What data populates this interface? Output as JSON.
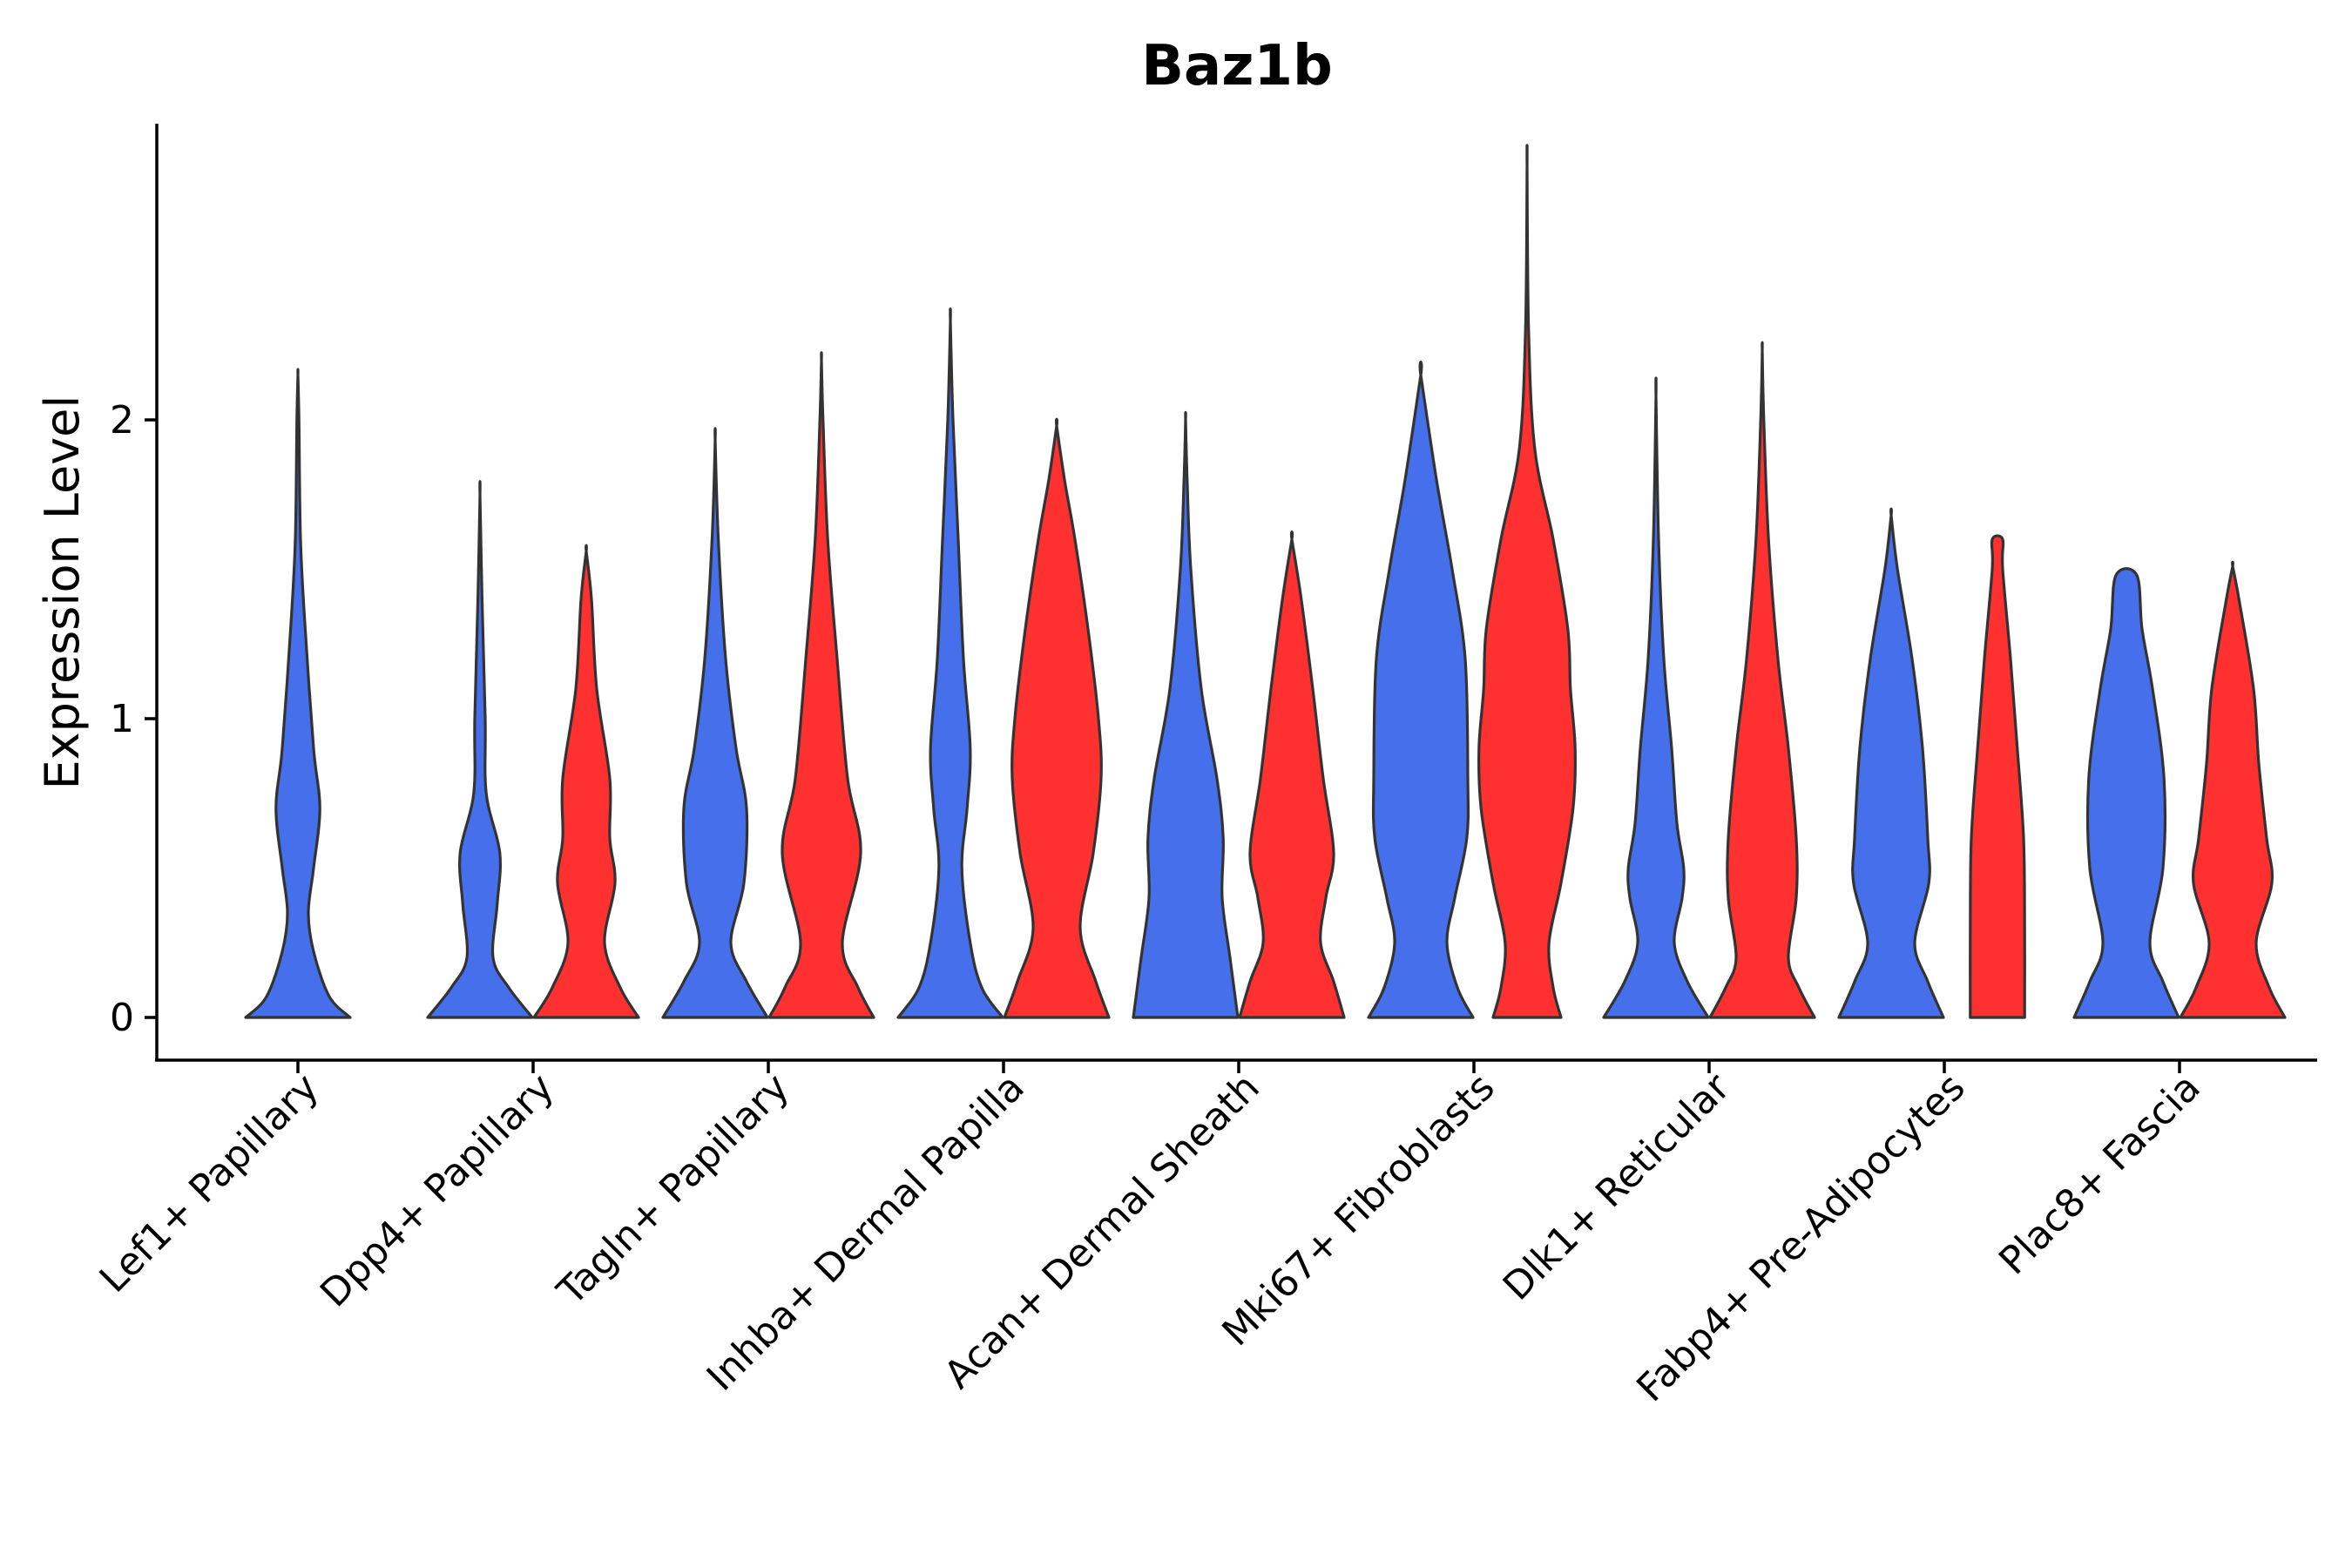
{
  "chart_data": {
    "type": "violin",
    "title": "Baz1b",
    "xlabel": "",
    "ylabel": "Expression Level",
    "ylim": [
      -0.14,
      3.0
    ],
    "yticks": [
      0,
      1,
      2
    ],
    "grid": false,
    "legend": "none",
    "colors": {
      "group1": "#4670eb",
      "group2": "#ff3030",
      "outline": "#333333"
    },
    "categories": [
      "Lef1+ Papillary",
      "Dpp4+ Papillary",
      "Tagln+ Papillary",
      "Inhba+ Dermal Papilla",
      "Acan+ Dermal Sheath",
      "Mki67+ Fibroblasts",
      "Dlk1+ Reticular",
      "Fabp4+ Pre-Adipocytes",
      "Plac8+ Fascia"
    ],
    "series": [
      {
        "name": "group1",
        "color": "#4670eb",
        "violins": [
          {
            "category": "Lef1+ Papillary",
            "max": 2.15,
            "profile": [
              [
                0,
                1.0
              ],
              [
                0.07,
                0.6
              ],
              [
                0.22,
                0.3
              ],
              [
                0.35,
                0.2
              ],
              [
                0.5,
                0.3
              ],
              [
                0.7,
                0.42
              ],
              [
                0.9,
                0.3
              ],
              [
                1.3,
                0.14
              ],
              [
                1.6,
                0.05
              ],
              [
                2.0,
                0.02
              ],
              [
                2.15,
                0
              ]
            ]
          },
          {
            "category": "Dpp4+ Papillary",
            "max": 1.75,
            "profile": [
              [
                0,
                1.0
              ],
              [
                0.1,
                0.55
              ],
              [
                0.2,
                0.25
              ],
              [
                0.38,
                0.33
              ],
              [
                0.55,
                0.38
              ],
              [
                0.75,
                0.12
              ],
              [
                1.0,
                0.1
              ],
              [
                1.4,
                0.04
              ],
              [
                1.75,
                0
              ]
            ]
          },
          {
            "category": "Tagln+ Papillary",
            "max": 1.93,
            "profile": [
              [
                0,
                1.0
              ],
              [
                0.12,
                0.6
              ],
              [
                0.25,
                0.3
              ],
              [
                0.45,
                0.55
              ],
              [
                0.7,
                0.6
              ],
              [
                0.9,
                0.4
              ],
              [
                1.2,
                0.2
              ],
              [
                1.6,
                0.06
              ],
              [
                1.93,
                0
              ]
            ]
          },
          {
            "category": "Inhba+ Dermal Papilla",
            "max": 2.33,
            "profile": [
              [
                0,
                1.0
              ],
              [
                0.1,
                0.6
              ],
              [
                0.25,
                0.38
              ],
              [
                0.5,
                0.22
              ],
              [
                0.7,
                0.32
              ],
              [
                0.9,
                0.38
              ],
              [
                1.2,
                0.25
              ],
              [
                1.6,
                0.15
              ],
              [
                2.0,
                0.05
              ],
              [
                2.33,
                0
              ]
            ]
          },
          {
            "category": "Acan+ Dermal Sheath",
            "max": 2.0,
            "profile": [
              [
                0,
                1.0
              ],
              [
                0.2,
                0.85
              ],
              [
                0.4,
                0.7
              ],
              [
                0.6,
                0.72
              ],
              [
                0.8,
                0.6
              ],
              [
                1.1,
                0.3
              ],
              [
                1.5,
                0.1
              ],
              [
                1.8,
                0.03
              ],
              [
                2.0,
                0
              ]
            ]
          },
          {
            "category": "Mki67+ Fibroblasts",
            "max": 2.15,
            "profile": [
              [
                0,
                1.0
              ],
              [
                0.1,
                0.7
              ],
              [
                0.25,
                0.5
              ],
              [
                0.4,
                0.65
              ],
              [
                0.6,
                0.88
              ],
              [
                0.8,
                0.9
              ],
              [
                1.2,
                0.85
              ],
              [
                1.5,
                0.6
              ],
              [
                1.8,
                0.3
              ],
              [
                2.15,
                0
              ]
            ]
          },
          {
            "category": "Dlk1+ Reticular",
            "max": 2.08,
            "profile": [
              [
                0,
                1.0
              ],
              [
                0.12,
                0.6
              ],
              [
                0.25,
                0.35
              ],
              [
                0.4,
                0.5
              ],
              [
                0.5,
                0.53
              ],
              [
                0.65,
                0.4
              ],
              [
                0.9,
                0.3
              ],
              [
                1.2,
                0.15
              ],
              [
                1.6,
                0.05
              ],
              [
                2.08,
                0
              ]
            ]
          },
          {
            "category": "Fabp4+ Pre-Adipocytes",
            "max": 1.68,
            "profile": [
              [
                0,
                1.0
              ],
              [
                0.12,
                0.7
              ],
              [
                0.25,
                0.45
              ],
              [
                0.45,
                0.72
              ],
              [
                0.6,
                0.7
              ],
              [
                0.9,
                0.6
              ],
              [
                1.2,
                0.4
              ],
              [
                1.5,
                0.12
              ],
              [
                1.68,
                0
              ]
            ]
          },
          {
            "category": "Plac8+ Fascia",
            "max": 1.48,
            "profile": [
              [
                0,
                1.0
              ],
              [
                0.12,
                0.7
              ],
              [
                0.25,
                0.45
              ],
              [
                0.5,
                0.7
              ],
              [
                0.8,
                0.72
              ],
              [
                1.1,
                0.5
              ],
              [
                1.3,
                0.3
              ],
              [
                1.48,
                0.2
              ]
            ]
          }
        ]
      },
      {
        "name": "group2",
        "color": "#ff3030",
        "violins": [
          {
            "category": "Dpp4+ Papillary",
            "max": 1.56,
            "profile": [
              [
                0,
                1.0
              ],
              [
                0.1,
                0.65
              ],
              [
                0.25,
                0.35
              ],
              [
                0.45,
                0.55
              ],
              [
                0.6,
                0.45
              ],
              [
                0.8,
                0.45
              ],
              [
                1.1,
                0.2
              ],
              [
                1.4,
                0.1
              ],
              [
                1.56,
                0
              ]
            ]
          },
          {
            "category": "Tagln+ Papillary",
            "max": 2.2,
            "profile": [
              [
                0,
                1.0
              ],
              [
                0.1,
                0.7
              ],
              [
                0.25,
                0.4
              ],
              [
                0.55,
                0.75
              ],
              [
                0.8,
                0.5
              ],
              [
                1.2,
                0.3
              ],
              [
                1.6,
                0.12
              ],
              [
                2.0,
                0.03
              ],
              [
                2.2,
                0
              ]
            ]
          },
          {
            "category": "Inhba+ Dermal Papilla",
            "max": 1.98,
            "profile": [
              [
                0,
                1.0
              ],
              [
                0.12,
                0.75
              ],
              [
                0.3,
                0.45
              ],
              [
                0.55,
                0.7
              ],
              [
                0.8,
                0.85
              ],
              [
                1.0,
                0.8
              ],
              [
                1.3,
                0.6
              ],
              [
                1.6,
                0.35
              ],
              [
                1.8,
                0.15
              ],
              [
                1.98,
                0
              ]
            ]
          },
          {
            "category": "Acan+ Dermal Sheath",
            "max": 1.6,
            "profile": [
              [
                0,
                1.0
              ],
              [
                0.12,
                0.8
              ],
              [
                0.25,
                0.55
              ],
              [
                0.4,
                0.65
              ],
              [
                0.55,
                0.8
              ],
              [
                0.8,
                0.6
              ],
              [
                1.1,
                0.4
              ],
              [
                1.4,
                0.18
              ],
              [
                1.6,
                0
              ]
            ]
          },
          {
            "category": "Mki67+ Fibroblasts",
            "max": 2.85,
            "profile": [
              [
                0,
                0.65
              ],
              [
                0.1,
                0.5
              ],
              [
                0.25,
                0.42
              ],
              [
                0.45,
                0.65
              ],
              [
                0.7,
                0.88
              ],
              [
                0.9,
                0.92
              ],
              [
                1.1,
                0.83
              ],
              [
                1.3,
                0.78
              ],
              [
                1.6,
                0.5
              ],
              [
                1.9,
                0.15
              ],
              [
                2.3,
                0.03
              ],
              [
                2.85,
                0
              ]
            ]
          },
          {
            "category": "Dlk1+ Reticular",
            "max": 2.23,
            "profile": [
              [
                0,
                1.0
              ],
              [
                0.1,
                0.7
              ],
              [
                0.2,
                0.5
              ],
              [
                0.4,
                0.65
              ],
              [
                0.6,
                0.65
              ],
              [
                0.9,
                0.5
              ],
              [
                1.2,
                0.3
              ],
              [
                1.6,
                0.12
              ],
              [
                2.0,
                0.03
              ],
              [
                2.23,
                0
              ]
            ]
          },
          {
            "category": "Fabp4+ Pre-Adipocytes",
            "max": 1.6,
            "profile": [
              [
                0,
                0.52
              ],
              [
                0.3,
                0.52
              ],
              [
                0.6,
                0.5
              ],
              [
                0.9,
                0.38
              ],
              [
                1.2,
                0.25
              ],
              [
                1.5,
                0.1
              ],
              [
                1.6,
                0.1
              ]
            ]
          },
          {
            "category": "Plac8+ Fascia",
            "max": 1.51,
            "profile": [
              [
                0,
                1.0
              ],
              [
                0.1,
                0.7
              ],
              [
                0.25,
                0.45
              ],
              [
                0.45,
                0.75
              ],
              [
                0.6,
                0.65
              ],
              [
                0.85,
                0.5
              ],
              [
                1.1,
                0.4
              ],
              [
                1.4,
                0.12
              ],
              [
                1.51,
                0
              ]
            ]
          }
        ]
      }
    ]
  }
}
